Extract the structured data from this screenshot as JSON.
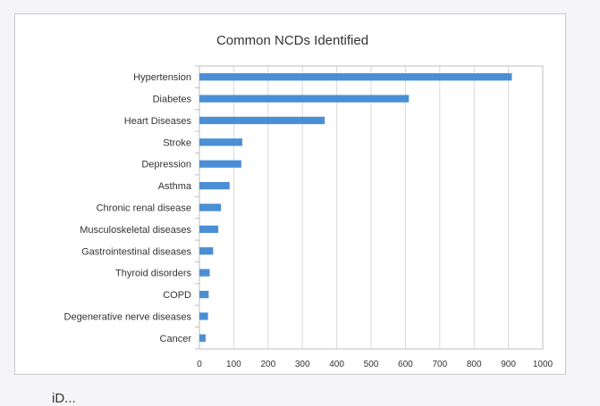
{
  "chart_data": {
    "type": "bar",
    "orientation": "horizontal",
    "title": "Common NCDs Identified",
    "categories": [
      "Hypertension",
      "Diabetes",
      "Heart Diseases",
      "Stroke",
      "Depression",
      "Asthma",
      "Chronic renal disease",
      "Musculoskeletal diseases",
      "Gastrointestinal diseases",
      "Thyroid disorders",
      "COPD",
      "Degenerative nerve diseases",
      "Cancer"
    ],
    "values": [
      910,
      610,
      365,
      125,
      122,
      88,
      63,
      55,
      40,
      30,
      27,
      25,
      18
    ],
    "xlabel": "",
    "ylabel": "",
    "xlim": [
      0,
      1000
    ],
    "xticks": [
      0,
      100,
      200,
      300,
      400,
      500,
      600,
      700,
      800,
      900,
      1000
    ],
    "grid": "vertical",
    "legend": "none",
    "bar_color": "#4a8fd6",
    "grid_color": "#d9d9d9"
  },
  "page": {
    "below_text": "iD..."
  }
}
